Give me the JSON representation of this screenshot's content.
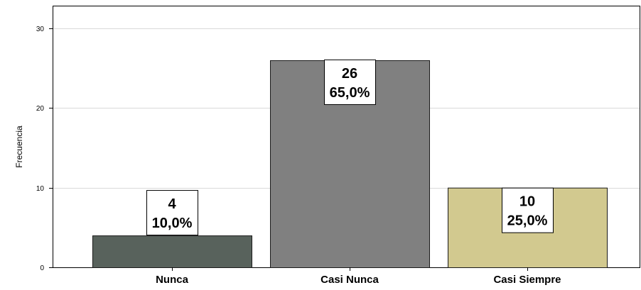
{
  "chart_data": {
    "type": "bar",
    "categories": [
      "Nunca",
      "Casi Nunca",
      "Casi Siempre"
    ],
    "values": [
      4,
      26,
      10
    ],
    "percent_labels": [
      "10,0%",
      "65,0%",
      "25,0%"
    ],
    "colors": [
      "#58625c",
      "#808080",
      "#d2c98f"
    ],
    "ylabel": "Frecuencia",
    "xlabel": "",
    "title": "",
    "ylim": [
      0,
      30
    ],
    "yticks": [
      0,
      10,
      20,
      30
    ],
    "grid": true,
    "legend": "none"
  }
}
